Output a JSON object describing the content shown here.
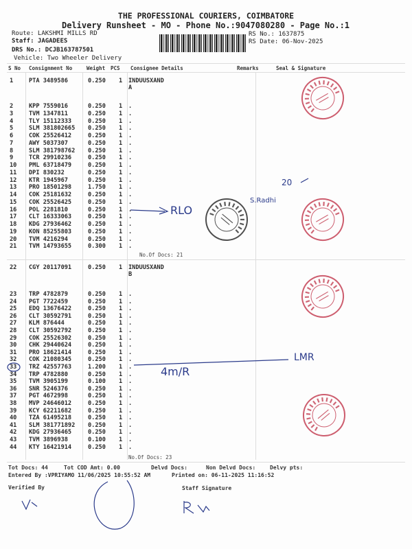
{
  "header": {
    "company": "THE PROFESSIONAL COURIERS, COIMBATORE",
    "subtitle": "Delivery Runsheet - MO - Phone No.:9047080280 - Page No.:1",
    "route": "Route: LAKSHMI MILLS RD",
    "staff": "Staff: JAGADEES",
    "drs": "DRS No.: DCJB163787501",
    "vehicle": "Vehicle: Two Wheeler Delivery",
    "rs_no": "RS No.: 1637875",
    "rs_date": "RS Date: 06-Nov-2025"
  },
  "columns": [
    "S No",
    "Consignment No",
    "Weight",
    "PCS",
    "Consignee Details",
    "Remarks",
    "Seal & Signature"
  ],
  "groups": [
    {
      "rows": [
        [
          "1",
          "PTA 3489586",
          "0.250",
          "1",
          "INDUUSXAND A"
        ],
        [
          "2",
          "KPP 7559016",
          "0.250",
          "1",
          "."
        ],
        [
          "3",
          "TVM 1347811",
          "0.250",
          "1",
          "."
        ],
        [
          "4",
          "TLY 15112333",
          "0.250",
          "1",
          "."
        ],
        [
          "5",
          "SLM 381802665",
          "0.250",
          "1",
          "."
        ],
        [
          "6",
          "COK 25526412",
          "0.250",
          "1",
          "."
        ],
        [
          "7",
          "AWY 5037307",
          "0.250",
          "1",
          "."
        ],
        [
          "8",
          "SLM 381798762",
          "0.250",
          "1",
          "."
        ],
        [
          "9",
          "TCR 29910236",
          "0.250",
          "1",
          "."
        ],
        [
          "10",
          "PML 63718479",
          "0.250",
          "1",
          "."
        ],
        [
          "11",
          "DPI 830232",
          "0.250",
          "1",
          "."
        ],
        [
          "12",
          "KTR 1945967",
          "0.250",
          "1",
          "."
        ],
        [
          "13",
          "PRO 18501298",
          "1.750",
          "1",
          "."
        ],
        [
          "14",
          "COK 25181632",
          "0.250",
          "1",
          "."
        ],
        [
          "15",
          "COK 25526425",
          "0.250",
          "1",
          "."
        ],
        [
          "16",
          "POL 2281810",
          "0.250",
          "1",
          "."
        ],
        [
          "17",
          "CLT 16333063",
          "0.250",
          "1",
          "."
        ],
        [
          "18",
          "KDG 27936462",
          "0.250",
          "1",
          "."
        ],
        [
          "19",
          "KON 85255803",
          "0.250",
          "1",
          "."
        ],
        [
          "20",
          "TVM 4216294",
          "0.250",
          "1",
          "."
        ],
        [
          "21",
          "TVM 14793655",
          "0.300",
          "1",
          "."
        ]
      ],
      "docs": "No.Of Docs: 21"
    },
    {
      "rows": [
        [
          "22",
          "CGY 20117091",
          "0.250",
          "1",
          "INDUUSXAND B"
        ],
        [
          "23",
          "TRP 4782879",
          "0.250",
          "1",
          "."
        ],
        [
          "24",
          "PGT 7722459",
          "0.250",
          "1",
          "."
        ],
        [
          "25",
          "EDQ 13676422",
          "0.250",
          "1",
          "."
        ],
        [
          "26",
          "CLT 30592791",
          "0.250",
          "1",
          "."
        ],
        [
          "27",
          "KLM 876444",
          "0.250",
          "1",
          "."
        ],
        [
          "28",
          "CLT 30592792",
          "0.250",
          "1",
          "."
        ],
        [
          "29",
          "COK 25526302",
          "0.250",
          "1",
          "."
        ],
        [
          "30",
          "CHK 29440624",
          "0.250",
          "1",
          "."
        ],
        [
          "31",
          "PRO 18621414",
          "0.250",
          "1",
          "."
        ],
        [
          "32",
          "COK 21080345",
          "0.250",
          "1",
          "."
        ],
        [
          "33",
          "TRZ 42557763",
          "1.200",
          "1",
          "."
        ],
        [
          "34",
          "TRP 4782880",
          "0.250",
          "1",
          "."
        ],
        [
          "35",
          "TVM 3905199",
          "0.100",
          "1",
          "."
        ],
        [
          "36",
          "SNR 5246376",
          "0.250",
          "1",
          "."
        ],
        [
          "37",
          "PGT 4672998",
          "0.250",
          "1",
          "."
        ],
        [
          "38",
          "MVP 24646012",
          "0.250",
          "1",
          "."
        ],
        [
          "39",
          "KCY 62211682",
          "0.250",
          "1",
          "."
        ],
        [
          "40",
          "TZA 61495218",
          "0.250",
          "1",
          "."
        ],
        [
          "41",
          "SLM 381771892",
          "0.250",
          "1",
          "."
        ],
        [
          "42",
          "KDG 27936465",
          "0.250",
          "1",
          "."
        ],
        [
          "43",
          "TVM 3896938",
          "0.100",
          "1",
          "."
        ],
        [
          "44",
          "KTY 16421914",
          "0.250",
          "1",
          "."
        ]
      ],
      "docs": "No.Of Docs: 23"
    }
  ],
  "footer": {
    "tot_docs": "Tot Docs:  44",
    "tot_cod": "Tot COD Amt:    0.00",
    "delvd": "Delvd Docs:",
    "non_delvd": "Non Delvd Docs:",
    "delvy_pts": "Delvy pts:",
    "entered_by": "Entered By :VPRIYAMO 11/06/2025 10:55:52 AM",
    "printed_on": "Printed on: 06-11-2025 11:16:52",
    "verified_by": "Verified By",
    "staff_signature": "Staff Signature"
  },
  "stamps": {
    "red_text": "INDUSIND BANK LTD.",
    "red_center": "Coimbatore H.O.",
    "black_text": "INDUSIND BANK LIMITED",
    "black_center": "COIMBATORE BRANCH",
    "red_color": "#c0354a",
    "black_color": "#222222"
  },
  "handwriting": {
    "note_group1": "RLO",
    "note_name": "S.Radhi",
    "note_20": "20",
    "note_group2": "4m/R",
    "note_lmr": "LMR",
    "ink_color": "#2a3a8a"
  }
}
